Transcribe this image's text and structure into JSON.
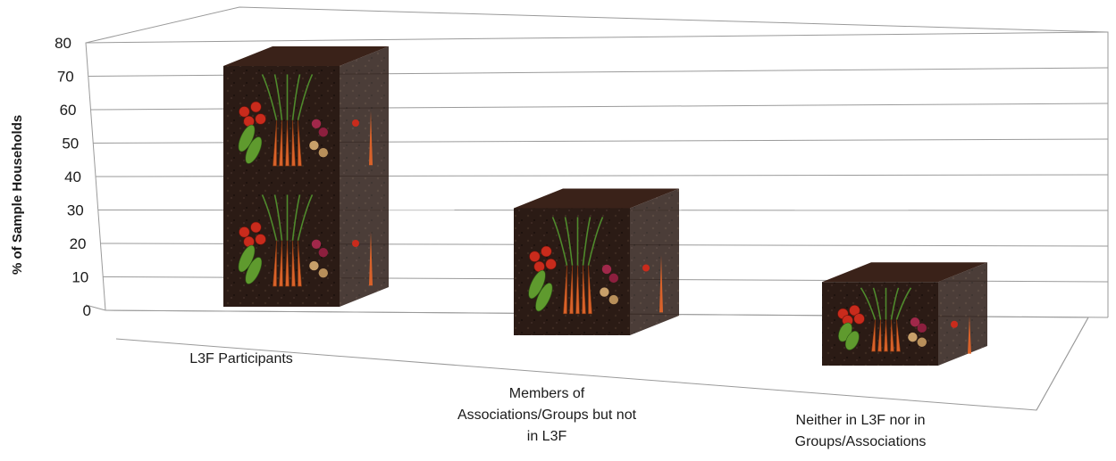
{
  "chart_data": {
    "type": "bar",
    "title": "",
    "xlabel": "",
    "ylabel": "% of Sample Households",
    "ylim": [
      0,
      80
    ],
    "yticks": [
      0,
      10,
      20,
      30,
      40,
      50,
      60,
      70,
      80
    ],
    "grid": true,
    "categories": [
      [
        "L3F Participants"
      ],
      [
        "Members of",
        "Associations/Groups but not",
        "in L3F"
      ],
      [
        "Neither in L3F nor in",
        "Groups/Associations"
      ]
    ],
    "values": [
      72,
      38,
      25
    ],
    "bar_style": "3d-cube-vegetable-texture",
    "colors": {
      "soil": "#2a1a14",
      "grid": "#9a9a9a",
      "text": "#1a1a1a"
    }
  }
}
